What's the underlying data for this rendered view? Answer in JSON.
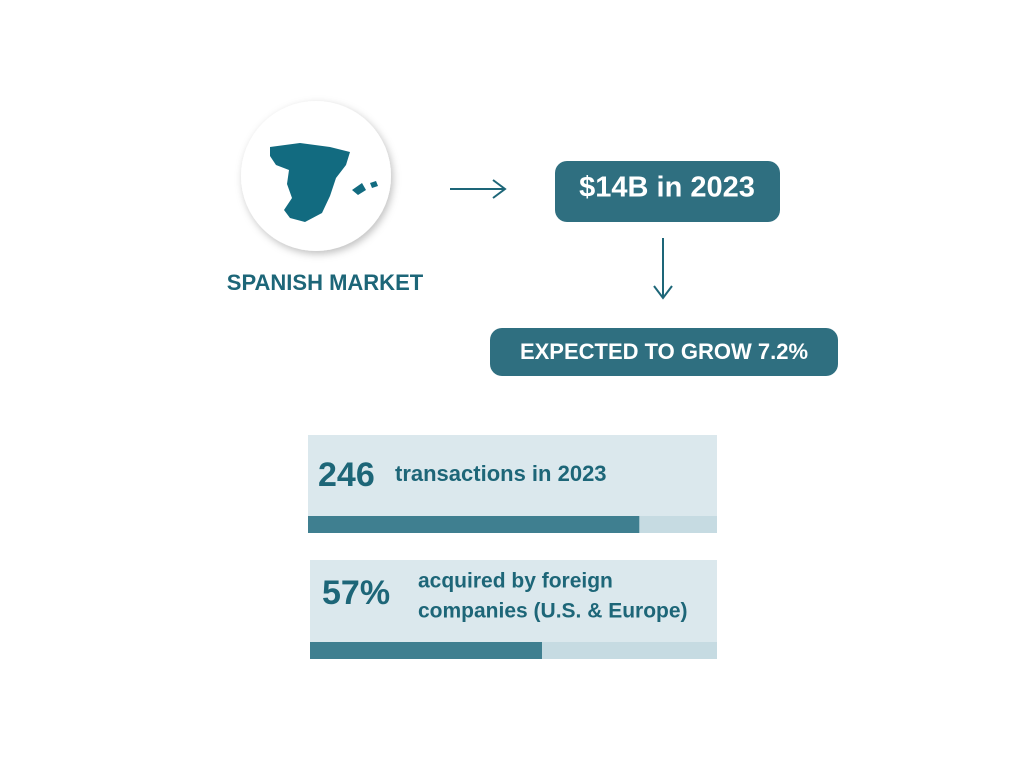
{
  "market": {
    "label": "SPANISH MARKET"
  },
  "flow": {
    "value_box": "$14B in 2023",
    "growth_box": "EXPECTED TO GROW 7.2%"
  },
  "stats": [
    {
      "number": "246",
      "text": [
        "transactions in 2023"
      ],
      "bar_percent": 81
    },
    {
      "number": "57%",
      "text": [
        "acquired by foreign",
        "companies (U.S. & Europe)"
      ],
      "bar_percent": 57
    }
  ]
}
